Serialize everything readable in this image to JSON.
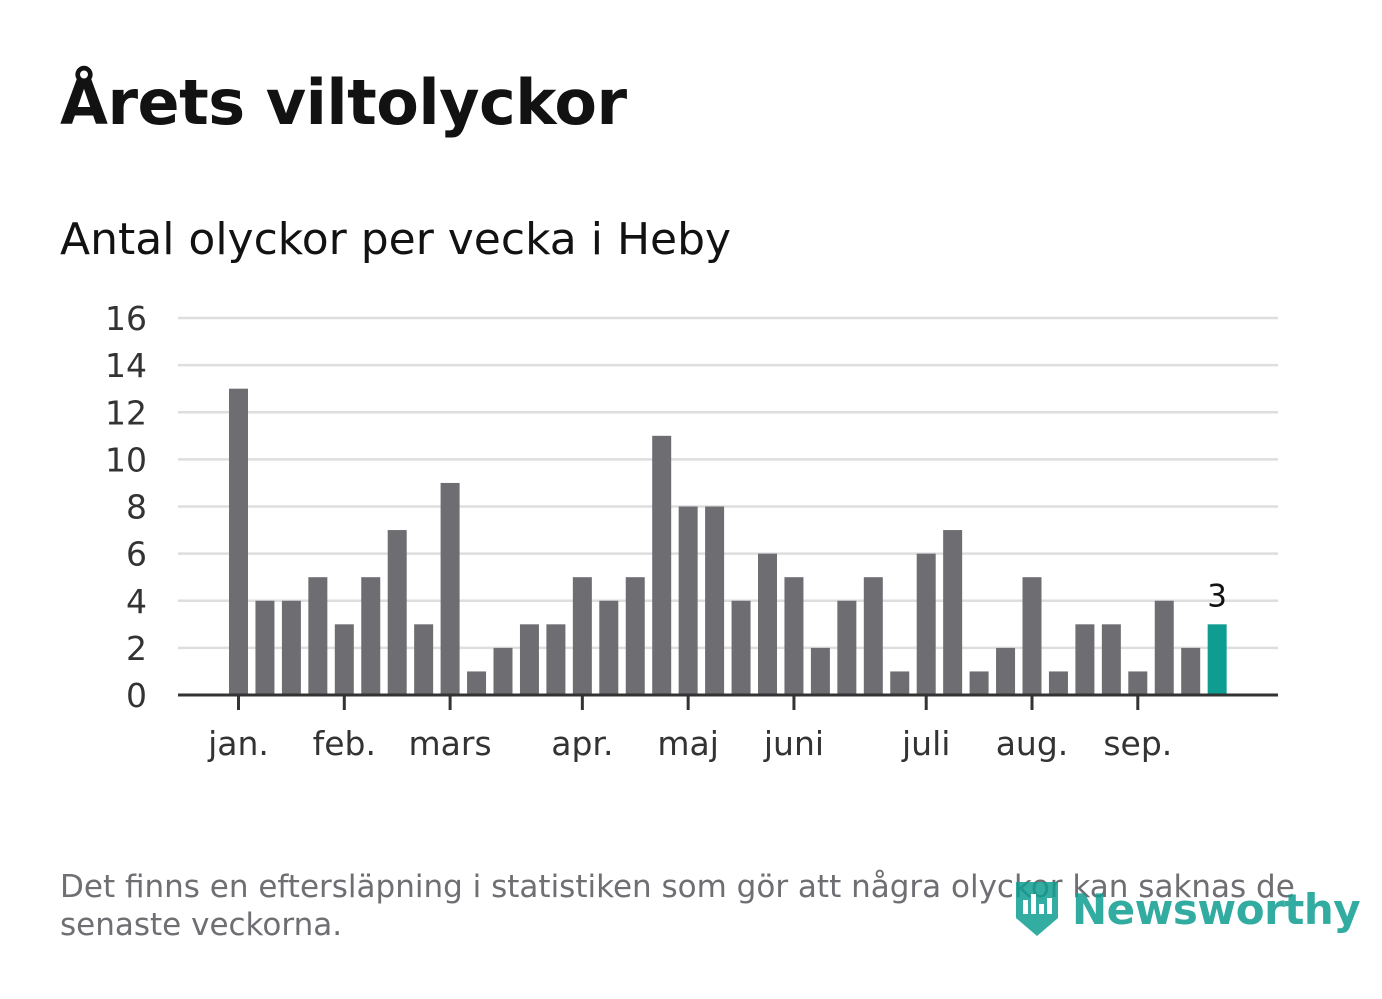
{
  "header": {
    "title": "Årets viltolyckor",
    "subtitle": "Antal olyckor per vecka i Heby"
  },
  "footer": {
    "note": "Det finns en eftersläpning i statistiken som gör att några olyckor kan saknas de senaste veckorna.",
    "brand": "Newsworthy"
  },
  "colors": {
    "bar": "#6e6d72",
    "highlight": "#0f9d91",
    "grid": "#dedede",
    "axis": "#333333",
    "tick_text": "#333333"
  },
  "chart_data": {
    "type": "bar",
    "title": "Årets viltolyckor",
    "subtitle": "Antal olyckor per vecka i Heby",
    "values": [
      13,
      4,
      4,
      5,
      3,
      5,
      7,
      3,
      9,
      1,
      2,
      3,
      3,
      5,
      4,
      5,
      11,
      8,
      8,
      4,
      6,
      5,
      2,
      4,
      5,
      1,
      6,
      7,
      1,
      2,
      5,
      1,
      3,
      3,
      1,
      4,
      2,
      3
    ],
    "ylim": [
      0,
      16
    ],
    "yticks": [
      0,
      2,
      4,
      6,
      8,
      10,
      12,
      14,
      16
    ],
    "xtick_labels": [
      {
        "label": "jan.",
        "at_index": 0
      },
      {
        "label": "feb.",
        "at_index": 4
      },
      {
        "label": "mars",
        "at_index": 8
      },
      {
        "label": "apr.",
        "at_index": 13
      },
      {
        "label": "maj",
        "at_index": 17
      },
      {
        "label": "juni",
        "at_index": 21
      },
      {
        "label": "juli",
        "at_index": 26
      },
      {
        "label": "aug.",
        "at_index": 30
      },
      {
        "label": "sep.",
        "at_index": 34
      }
    ],
    "highlight_index": 37,
    "highlight_label": "3",
    "grid": true
  }
}
